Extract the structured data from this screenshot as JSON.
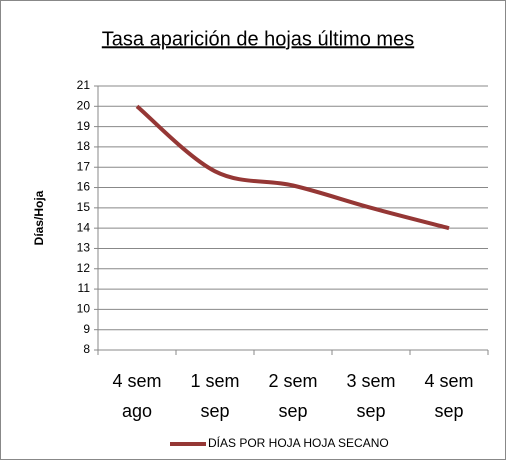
{
  "chart_data": {
    "type": "line",
    "title": "Tasa aparición de hojas último mes",
    "y_label": "Días/Hoja",
    "categories": [
      [
        "4 sem",
        "ago"
      ],
      [
        "1 sem",
        "sep"
      ],
      [
        "2 sem",
        "sep"
      ],
      [
        "3 sem",
        "sep"
      ],
      [
        "4 sem",
        "sep"
      ]
    ],
    "series": [
      {
        "name": "DÍAS POR HOJA HOJA SECANO",
        "color": "#953735",
        "values": [
          20,
          16.8,
          16.1,
          15.0,
          14
        ]
      }
    ],
    "ylim": [
      8,
      21
    ],
    "yticks": [
      8,
      9,
      10,
      11,
      12,
      13,
      14,
      15,
      16,
      17,
      18,
      19,
      20,
      21
    ],
    "grid": true,
    "smooth": true,
    "legend": "bottom"
  }
}
